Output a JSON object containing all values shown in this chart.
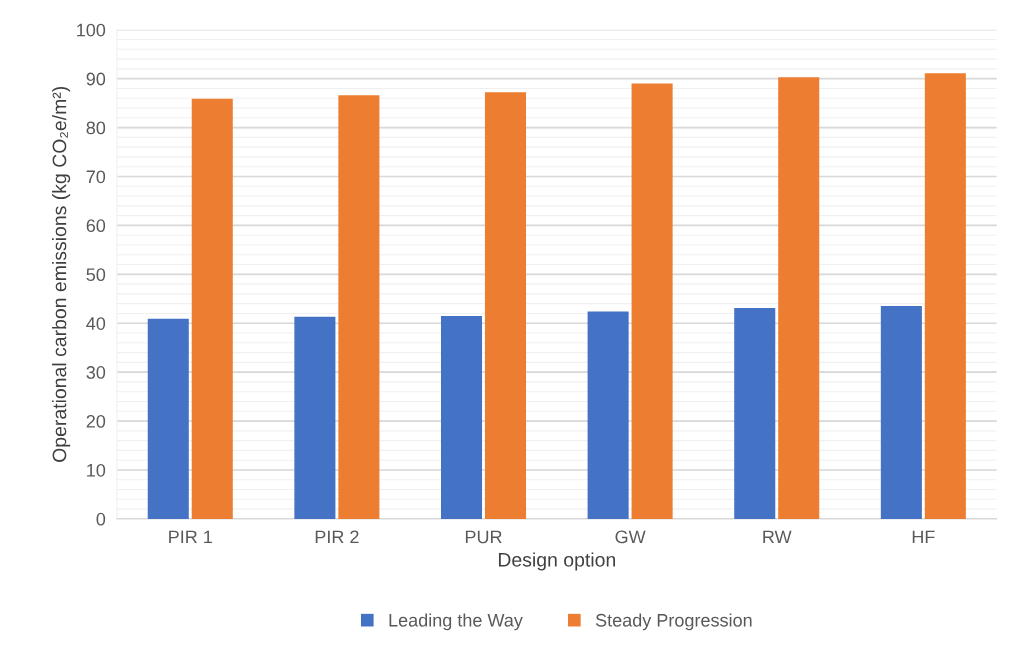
{
  "chart_data": {
    "type": "bar",
    "xlabel": "Design option",
    "ylabel": "Operational carbon emissions (kg CO₂e/m²)",
    "categories": [
      "PIR 1",
      "PIR 2",
      "PUR",
      "GW",
      "RW",
      "HF"
    ],
    "series": [
      {
        "name": "Leading the Way",
        "color": "#4472c4",
        "values": [
          40.9,
          41.3,
          41.5,
          42.4,
          43.1,
          43.5
        ]
      },
      {
        "name": "Steady Progression",
        "color": "#ed7d31",
        "values": [
          85.9,
          86.6,
          87.2,
          89.0,
          90.3,
          91.1
        ]
      }
    ],
    "ylim": [
      0,
      100
    ],
    "yticks": [
      0,
      10,
      20,
      30,
      40,
      50,
      60,
      70,
      80,
      90,
      100
    ],
    "grid": "y",
    "legend": "bottom"
  }
}
